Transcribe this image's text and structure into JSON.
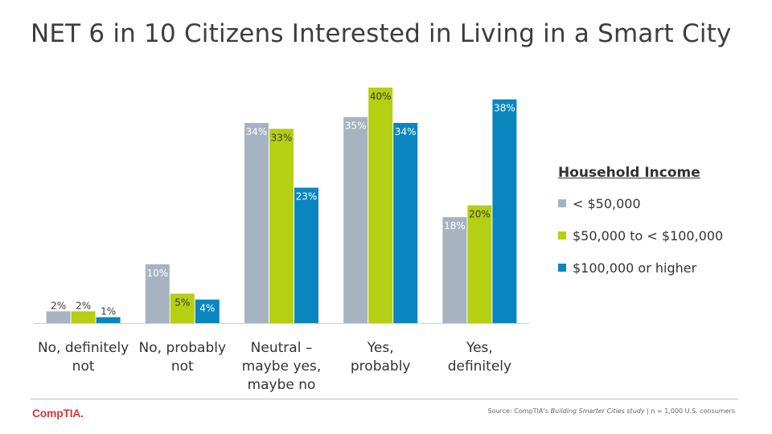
{
  "title": "NET 6 in 10 Citizens Interested in Living in a Smart City",
  "chart_data": {
    "type": "bar",
    "categories": [
      [
        "No, definitely",
        "not"
      ],
      [
        "No, probably",
        "not"
      ],
      [
        "Neutral –",
        "maybe yes,",
        "maybe no"
      ],
      [
        "Yes,",
        "probably"
      ],
      [
        "Yes,",
        "definitely"
      ]
    ],
    "series": [
      {
        "name": "< $50,000",
        "color": "#a7b3c0",
        "values": [
          2,
          10,
          34,
          35,
          18
        ],
        "labels": [
          "2%",
          "10%",
          "34%",
          "35%",
          "18%"
        ]
      },
      {
        "name": "$50,000 to < $100,000",
        "color": "#b5cf12",
        "values": [
          2,
          5,
          33,
          40,
          20
        ],
        "labels": [
          "2%",
          "5%",
          "33%",
          "40%",
          "20%"
        ]
      },
      {
        "name": "$100,000 or higher",
        "color": "#0a86bf",
        "values": [
          1,
          4,
          23,
          34,
          38
        ],
        "labels": [
          "1%",
          "4%",
          "23%",
          "34%",
          "38%"
        ]
      }
    ],
    "ylim": [
      0,
      40
    ],
    "legend": {
      "title": "Household  Income",
      "position": "right"
    },
    "grid": false
  },
  "footer": {
    "logo": "CompTIA.",
    "source_prefix": "Source: CompTIA’s ",
    "source_study": "Building Smarter Cities study",
    "source_suffix": "  |  n = 1,000 U.S. consumers"
  }
}
